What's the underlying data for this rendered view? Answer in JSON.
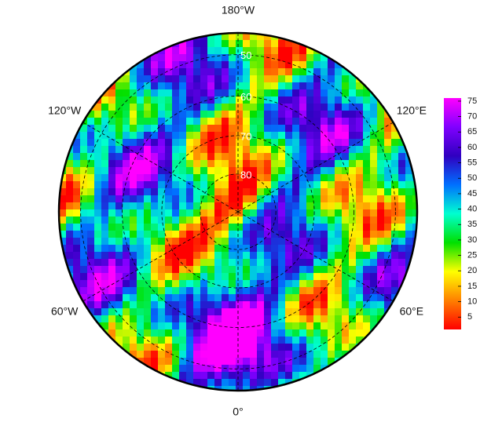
{
  "map": {
    "type": "polar-stereographic",
    "latlim": [
      45,
      90
    ],
    "lonticks": [
      {
        "value": -180,
        "label": "180°W"
      },
      {
        "value": -120,
        "label": "120°W"
      },
      {
        "value": 120,
        "label": "120°E"
      },
      {
        "value": -60,
        "label": "60°W"
      },
      {
        "value": 60,
        "label": "60°E"
      },
      {
        "value": 0,
        "label": "0°"
      }
    ],
    "latticks": [
      50,
      60,
      70,
      80
    ],
    "colorbar": {
      "lim": [
        1,
        76
      ],
      "ticks": [
        5,
        10,
        15,
        20,
        25,
        30,
        35,
        40,
        45,
        50,
        55,
        60,
        65,
        70,
        75
      ],
      "colors": [
        "#ff0000",
        "#ff8000",
        "#ffff00",
        "#00e000",
        "#00ffd0",
        "#0070ff",
        "#3000c0",
        "#8000ff",
        "#ff00ff"
      ]
    }
  }
}
